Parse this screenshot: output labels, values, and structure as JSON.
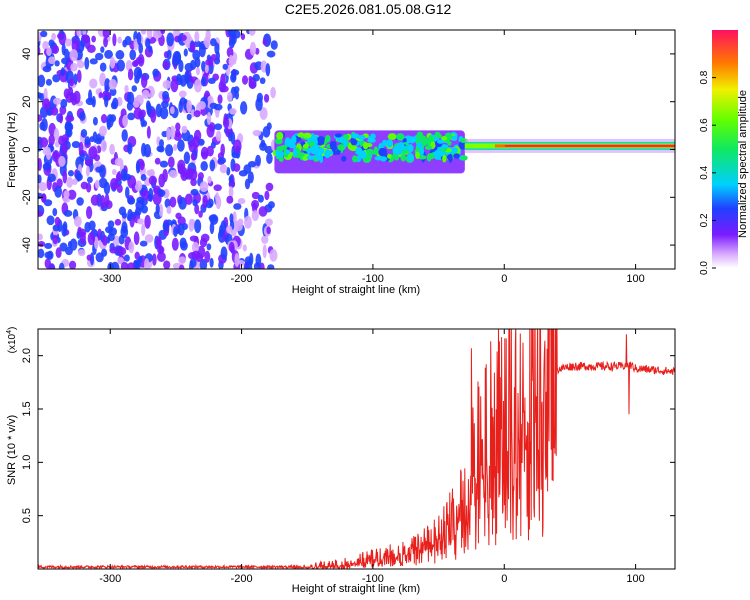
{
  "title": "C2E5.2026.081.05.08.G12",
  "chart_data": [
    {
      "type": "heatmap",
      "xlabel": "Height of straight line (km)",
      "ylabel": "Frequency (Hz)",
      "xlim": [
        -355,
        130
      ],
      "ylim": [
        -50,
        50
      ],
      "xticks": [
        -300,
        -200,
        -100,
        0,
        100
      ],
      "yticks": [
        -40,
        -20,
        0,
        20,
        40
      ],
      "x_tick_labels": [
        "-300",
        "-200",
        "-100",
        "0",
        "100"
      ],
      "y_tick_labels": [
        "-40",
        "-20",
        "0",
        "20",
        "40"
      ],
      "colorbar": {
        "label": "Normalized spectral amplitude",
        "range": [
          0,
          1
        ],
        "ticks": [
          0.0,
          0.2,
          0.4,
          0.6,
          0.8
        ],
        "tick_labels": [
          "0.0",
          "0.2",
          "0.4",
          "0.6",
          "0.8"
        ]
      },
      "regions": [
        {
          "x": [
            -355,
            -175
          ],
          "freq": [
            -50,
            50
          ],
          "amplitude": 0.12,
          "pattern": "noise"
        },
        {
          "x": [
            -175,
            -30
          ],
          "freq": [
            -10,
            8
          ],
          "amplitude": 0.25,
          "pattern": "blobs around 2 Hz"
        },
        {
          "x": [
            -30,
            130
          ],
          "freq": [
            0,
            3
          ],
          "amplitude": 0.95,
          "pattern": "narrow line at 1.5 Hz"
        }
      ]
    },
    {
      "type": "line",
      "xlabel": "Height of straight line (km)",
      "ylabel": "SNR (10 * v/v)",
      "y_scale_label": "(x10^4)",
      "y_scale_base": "(x10",
      "y_scale_exp": "4",
      "y_scale_close": ")",
      "xlim": [
        -355,
        130
      ],
      "ylim": [
        0,
        2.25
      ],
      "xticks": [
        -300,
        -200,
        -100,
        0,
        100
      ],
      "yticks": [
        0.5,
        1.0,
        1.5,
        2.0
      ],
      "x_tick_labels": [
        "-300",
        "-200",
        "-100",
        "0",
        "100"
      ],
      "y_tick_labels": [
        "0.5",
        "1.0",
        "1.5",
        "2.0"
      ],
      "series": [
        {
          "name": "SNR",
          "color": "#e8201c",
          "x": [
            -355,
            -300,
            -250,
            -200,
            -170,
            -150,
            -140,
            -120,
            -100,
            -80,
            -60,
            -50,
            -40,
            -30,
            -25,
            -20,
            -15,
            -10,
            -5,
            0,
            5,
            10,
            15,
            20,
            25,
            30,
            35,
            40,
            50,
            60,
            80,
            90,
            95,
            100,
            110,
            120,
            130
          ],
          "y": [
            0.02,
            0.02,
            0.02,
            0.02,
            0.02,
            0.02,
            0.03,
            0.05,
            0.1,
            0.15,
            0.25,
            0.35,
            0.5,
            0.75,
            0.95,
            1.15,
            1.3,
            1.35,
            1.45,
            1.5,
            1.6,
            1.66,
            1.7,
            1.75,
            1.8,
            1.85,
            1.86,
            1.87,
            1.9,
            1.9,
            1.9,
            1.9,
            1.92,
            1.88,
            1.87,
            1.86,
            1.85
          ]
        }
      ],
      "spikes": [
        {
          "x": -25,
          "y": 2.07
        },
        {
          "x": -10,
          "y": 1.7
        },
        {
          "x": 10,
          "y": 0.5
        },
        {
          "x": 93,
          "y": 2.2
        },
        {
          "x": 95,
          "y": 1.45
        }
      ]
    }
  ]
}
